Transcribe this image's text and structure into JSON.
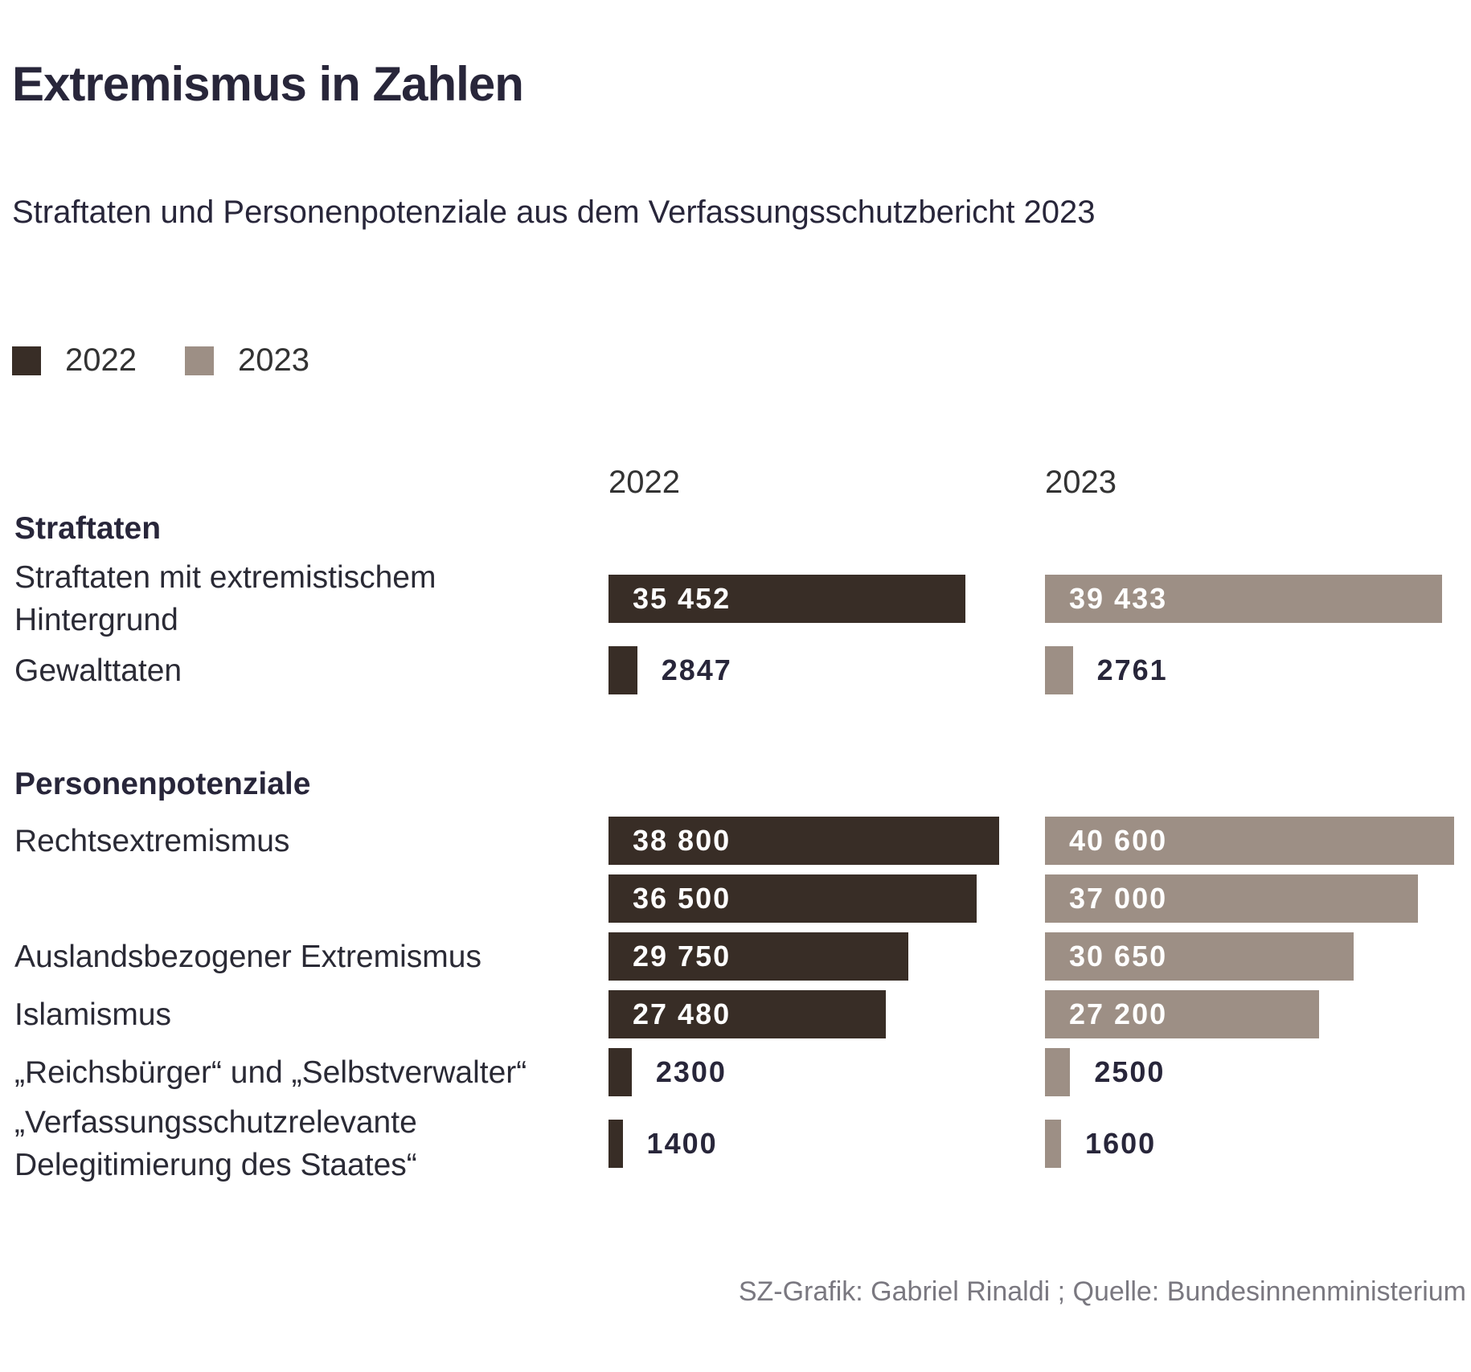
{
  "chart_data": {
    "type": "bar",
    "title": "Extremismus in Zahlen",
    "subtitle": "Straftaten und Personenpotenziale aus dem Verfassungsschutzbericht 2023",
    "source": "SZ-Grafik: Gabriel Rinaldi ; Quelle: Bundesinnenministerium",
    "series": [
      {
        "name": "2022",
        "color": "#382d26"
      },
      {
        "name": "2023",
        "color": "#9d8f85"
      }
    ],
    "sections": [
      {
        "title": "Straftaten",
        "categories": [
          "Straftaten mit extremistischem Hintergrund",
          "Gewalttaten"
        ],
        "series": [
          {
            "values": [
              35452,
              2847
            ],
            "value_labels": [
              "35 452",
              "2847"
            ]
          },
          {
            "values": [
              39433,
              2761
            ],
            "value_labels": [
              "39 433",
              "2761"
            ]
          }
        ]
      },
      {
        "title": "Personenpotenziale",
        "categories": [
          "Rechtsextremismus",
          null,
          "Auslandsbezogener Extremismus",
          "Islamismus",
          "„Reichsbürger“ und „Selbstverwalter“",
          "„Verfassungsschutzrelevante Delegitimierung des Staates“"
        ],
        "series": [
          {
            "values": [
              38800,
              36500,
              29750,
              27480,
              2300,
              1400
            ],
            "value_labels": [
              "38 800",
              "36 500",
              "29 750",
              "27 480",
              "2300",
              "1400"
            ]
          },
          {
            "values": [
              40600,
              37000,
              30650,
              27200,
              2500,
              1600
            ],
            "value_labels": [
              "40 600",
              "37 000",
              "30 650",
              "27 200",
              "2500",
              "1600"
            ]
          }
        ]
      }
    ]
  }
}
